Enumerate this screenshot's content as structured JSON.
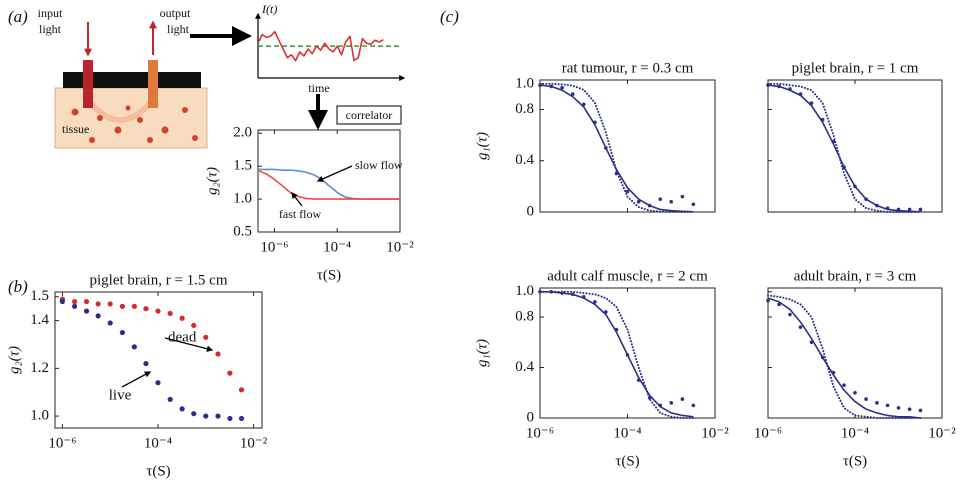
{
  "panel_labels": [
    "(a)",
    "(b)",
    "(c)"
  ],
  "diagram": {
    "input": [
      "input",
      "light"
    ],
    "output": [
      "output",
      "light"
    ],
    "tissue": "tissue",
    "correlator": "correlator"
  },
  "chart_data": [
    {
      "type": "line",
      "ylabel": "I(t)",
      "xlabel": "time",
      "x": [
        0,
        1,
        2,
        3,
        4,
        5,
        6,
        7,
        8,
        9,
        10,
        11,
        12,
        13,
        14,
        15,
        16,
        17,
        18,
        19,
        20,
        21,
        22,
        23,
        24,
        25,
        26,
        27,
        28,
        29,
        30
      ],
      "xlim": [
        0,
        34
      ],
      "ylim": [
        0,
        1
      ],
      "hline": 0.55,
      "hline_color": "#2a9a3a",
      "series": [
        {
          "color": "#e03030",
          "values": [
            0.6,
            0.75,
            0.7,
            0.72,
            0.8,
            0.65,
            0.5,
            0.35,
            0.4,
            0.3,
            0.45,
            0.38,
            0.5,
            0.42,
            0.55,
            0.48,
            0.6,
            0.5,
            0.45,
            0.55,
            0.4,
            0.62,
            0.72,
            0.3,
            0.35,
            0.68,
            0.6,
            0.58,
            0.65,
            0.62,
            0.66
          ]
        }
      ]
    },
    {
      "type": "line",
      "ylabel": "g₂(τ)",
      "xlabel": "τ(S)",
      "xscale": "log",
      "x": [
        3.2e-07,
        5.6e-07,
        1e-06,
        1.8e-06,
        3.2e-06,
        5.6e-06,
        1e-05,
        1.8e-05,
        3.2e-05,
        5.6e-05,
        0.0001,
        0.00018,
        0.00032,
        0.00056,
        0.001,
        0.0032,
        0.01
      ],
      "xlim": [
        3e-07,
        0.01
      ],
      "ylim": [
        0.5,
        2.05
      ],
      "xticks": [
        {
          "value": 1e-06,
          "label": "10⁻⁶"
        },
        {
          "value": 0.0001,
          "label": "10⁻⁴"
        },
        {
          "value": 0.01,
          "label": "10⁻²"
        }
      ],
      "yticks": [
        0.5,
        {
          "value": 1,
          "label": "1.0"
        },
        1.5,
        {
          "value": 2,
          "label": "2.0"
        }
      ],
      "xtick_labels": true,
      "ytick_labels": true,
      "series": [
        {
          "name": "slow flow",
          "color": "#5b8fd0",
          "values": [
            1.45,
            1.45,
            1.45,
            1.44,
            1.44,
            1.43,
            1.41,
            1.37,
            1.3,
            1.2,
            1.1,
            1.03,
            1.01,
            1.0,
            1.0,
            1.0,
            1.0
          ]
        },
        {
          "name": "fast flow",
          "color": "#e8503a",
          "values": [
            1.43,
            1.38,
            1.3,
            1.2,
            1.1,
            1.04,
            1.01,
            1.0,
            1.0,
            1.0,
            1.0,
            1.0,
            1.0,
            1.0,
            1.0,
            1.0,
            1.0
          ]
        }
      ]
    },
    {
      "type": "scatter",
      "title": "piglet brain, r = 1.5 cm",
      "ylabel": "g₂(τ)",
      "xlabel": "τ(S)",
      "xscale": "log",
      "x": [
        1e-06,
        1.8e-06,
        3.2e-06,
        5.6e-06,
        1e-05,
        1.8e-05,
        3.2e-05,
        5.6e-05,
        0.0001,
        0.00018,
        0.00032,
        0.00056,
        0.001,
        0.0018,
        0.0032,
        0.0056
      ],
      "xlim": [
        7e-07,
        0.015
      ],
      "ylim": [
        0.95,
        1.52
      ],
      "xticks": [
        {
          "value": 1e-06,
          "label": "10⁻⁶"
        },
        {
          "value": 0.0001,
          "label": "10⁻⁴"
        },
        {
          "value": 0.01,
          "label": "10⁻²"
        }
      ],
      "yticks": [
        {
          "value": 1,
          "label": "1.0"
        },
        1.2,
        1.4,
        1.5
      ],
      "xtick_labels": true,
      "ytick_labels": true,
      "series": [
        {
          "name": "dead",
          "color": "#d42a2a",
          "values": [
            1.49,
            1.48,
            1.48,
            1.47,
            1.47,
            1.46,
            1.46,
            1.45,
            1.44,
            1.43,
            1.41,
            1.38,
            1.33,
            1.26,
            1.18,
            1.11
          ]
        },
        {
          "name": "live",
          "color": "#2a2f8f",
          "values": [
            1.48,
            1.46,
            1.44,
            1.42,
            1.39,
            1.35,
            1.29,
            1.22,
            1.14,
            1.07,
            1.03,
            1.01,
            1.0,
            1.0,
            0.99,
            0.99
          ]
        }
      ]
    },
    {
      "type": "line",
      "title": "rat tumour, r = 0.3 cm",
      "ylabel": "g₁(τ)",
      "xscale": "log",
      "x": [
        1e-06,
        1.8e-06,
        3.2e-06,
        5.6e-06,
        1e-05,
        1.8e-05,
        3.2e-05,
        5.6e-05,
        0.0001,
        0.00018,
        0.00032,
        0.00056,
        0.001,
        0.0018,
        0.0032
      ],
      "xlim": [
        1e-06,
        0.01
      ],
      "ylim": [
        0,
        1.03
      ],
      "xticks": [
        1e-06,
        0.0001,
        0.01
      ],
      "yticks": [
        0,
        0.4,
        0.8,
        {
          "value": 1,
          "label": "1.0"
        }
      ],
      "xtick_labels": false,
      "ytick_labels": true,
      "series": [
        {
          "style": "dots",
          "color": "#2b2f8a",
          "values": [
            0.99,
            0.98,
            0.97,
            0.92,
            0.84,
            0.7,
            0.5,
            0.3,
            0.16,
            0.08,
            0.05,
            0.1,
            0.08,
            0.12,
            0.06
          ]
        },
        {
          "style": "solid",
          "color": "#2b2f8a",
          "values": [
            0.99,
            0.98,
            0.95,
            0.9,
            0.82,
            0.68,
            0.5,
            0.33,
            0.19,
            0.1,
            0.05,
            0.02,
            0.01,
            0.005,
            0.002
          ]
        },
        {
          "style": "dotted",
          "color": "#2b2f8a",
          "values": [
            1.0,
            1.0,
            0.996,
            0.986,
            0.953,
            0.852,
            0.622,
            0.32,
            0.119,
            0.038,
            0.011,
            0.003,
            0.001,
            0,
            0
          ]
        }
      ]
    },
    {
      "type": "line",
      "title": "piglet brain, r = 1 cm",
      "xscale": "log",
      "x": [
        1e-06,
        1.8e-06,
        3.2e-06,
        5.6e-06,
        1e-05,
        1.8e-05,
        3.2e-05,
        5.6e-05,
        0.0001,
        0.00018,
        0.00032,
        0.00056,
        0.001,
        0.0018,
        0.0032
      ],
      "xlim": [
        1e-06,
        0.01
      ],
      "ylim": [
        0,
        1.03
      ],
      "xticks": [
        1e-06,
        0.0001,
        0.01
      ],
      "yticks": [
        0,
        0.4,
        0.8,
        1
      ],
      "xtick_labels": false,
      "ytick_labels": false,
      "series": [
        {
          "style": "dots",
          "color": "#2b2f8a",
          "values": [
            0.99,
            0.98,
            0.96,
            0.92,
            0.85,
            0.72,
            0.55,
            0.35,
            0.2,
            0.1,
            0.05,
            0.03,
            0.02,
            0.02,
            0.02
          ]
        },
        {
          "style": "solid",
          "color": "#2b2f8a",
          "values": [
            0.99,
            0.98,
            0.95,
            0.91,
            0.83,
            0.7,
            0.53,
            0.35,
            0.2,
            0.1,
            0.05,
            0.02,
            0.01,
            0.005,
            0.002
          ]
        },
        {
          "style": "dotted",
          "color": "#2b2f8a",
          "values": [
            1,
            1,
            0.99,
            0.98,
            0.95,
            0.85,
            0.6,
            0.3,
            0.1,
            0.03,
            0.01,
            0,
            0,
            0,
            0
          ]
        }
      ]
    },
    {
      "type": "line",
      "title": "adult calf muscle, r = 2 cm",
      "ylabel": "g₁(τ)",
      "xlabel": "τ(S)",
      "xscale": "log",
      "x": [
        1e-06,
        1.8e-06,
        3.2e-06,
        5.6e-06,
        1e-05,
        1.8e-05,
        3.2e-05,
        5.6e-05,
        0.0001,
        0.00018,
        0.00032,
        0.00056,
        0.001,
        0.0018,
        0.0032
      ],
      "xlim": [
        1e-06,
        0.01
      ],
      "ylim": [
        0,
        1.03
      ],
      "xticks": [
        {
          "value": 1e-06,
          "label": "10⁻⁶"
        },
        {
          "value": 0.0001,
          "label": "10⁻⁴"
        },
        {
          "value": 0.01,
          "label": "10⁻²"
        }
      ],
      "yticks": [
        0,
        0.4,
        0.8,
        {
          "value": 1,
          "label": "1.0"
        }
      ],
      "xtick_labels": true,
      "ytick_labels": true,
      "series": [
        {
          "style": "dots",
          "color": "#2b2f8a",
          "values": [
            1,
            1,
            0.99,
            0.98,
            0.96,
            0.92,
            0.84,
            0.7,
            0.5,
            0.3,
            0.16,
            0.1,
            0.12,
            0.15,
            0.1
          ]
        },
        {
          "style": "solid",
          "color": "#2b2f8a",
          "values": [
            1,
            1,
            0.99,
            0.98,
            0.95,
            0.9,
            0.82,
            0.68,
            0.5,
            0.32,
            0.18,
            0.09,
            0.04,
            0.02,
            0.01
          ]
        },
        {
          "style": "dotted",
          "color": "#2b2f8a",
          "values": [
            1,
            1,
            1,
            1,
            0.99,
            0.98,
            0.95,
            0.88,
            0.7,
            0.4,
            0.15,
            0.04,
            0.01,
            0,
            0
          ]
        }
      ]
    },
    {
      "type": "line",
      "title": "adult brain, r = 3 cm",
      "xlabel": "τ(S)",
      "xscale": "log",
      "x": [
        1e-06,
        1.8e-06,
        3.2e-06,
        5.6e-06,
        1e-05,
        1.8e-05,
        3.2e-05,
        5.6e-05,
        0.0001,
        0.00018,
        0.00032,
        0.00056,
        0.001,
        0.0018,
        0.0032
      ],
      "xlim": [
        1e-06,
        0.01
      ],
      "ylim": [
        0,
        1.03
      ],
      "xticks": [
        {
          "value": 1e-06,
          "label": "10⁻⁶"
        },
        {
          "value": 0.0001,
          "label": "10⁻⁴"
        },
        {
          "value": 0.01,
          "label": "10⁻²"
        }
      ],
      "yticks": [
        0,
        0.4,
        0.8,
        1
      ],
      "xtick_labels": true,
      "ytick_labels": false,
      "series": [
        {
          "style": "dots",
          "color": "#2b2f8a",
          "values": [
            0.93,
            0.9,
            0.82,
            0.72,
            0.6,
            0.48,
            0.36,
            0.26,
            0.2,
            0.15,
            0.12,
            0.1,
            0.08,
            0.07,
            0.06
          ]
        },
        {
          "style": "solid",
          "color": "#2b2f8a",
          "values": [
            0.95,
            0.92,
            0.86,
            0.76,
            0.63,
            0.48,
            0.34,
            0.22,
            0.13,
            0.07,
            0.04,
            0.02,
            0.01,
            0.01,
            0
          ]
        },
        {
          "style": "dotted",
          "color": "#2b2f8a",
          "values": [
            0.97,
            0.96,
            0.94,
            0.9,
            0.8,
            0.55,
            0.25,
            0.08,
            0.02,
            0.01,
            0,
            0,
            0,
            0,
            0
          ]
        }
      ]
    }
  ]
}
